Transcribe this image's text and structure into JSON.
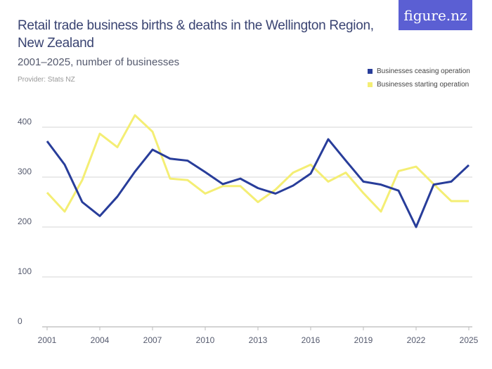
{
  "title": "Retail trade business births & deaths in the Wellington Region, New Zealand",
  "subtitle": "2001–2025, number of businesses",
  "provider": "Provider: Stats NZ",
  "logo": "figure.nz",
  "chart_data": {
    "type": "line",
    "title": "Retail trade business births & deaths in the Wellington Region, New Zealand",
    "subtitle": "2001–2025, number of businesses",
    "x": [
      2001,
      2002,
      2003,
      2004,
      2005,
      2006,
      2007,
      2008,
      2009,
      2010,
      2011,
      2012,
      2013,
      2014,
      2015,
      2016,
      2017,
      2018,
      2019,
      2020,
      2021,
      2022,
      2023,
      2024,
      2025
    ],
    "x_ticks": [
      "2001",
      "2004",
      "2007",
      "2010",
      "2013",
      "2016",
      "2019",
      "2022",
      "2025"
    ],
    "y_ticks": [
      "0",
      "100",
      "200",
      "300",
      "400"
    ],
    "ylim": [
      0,
      400
    ],
    "grid": true,
    "legend_position": "top-right",
    "series": [
      {
        "name": "Businesses ceasing operation",
        "color": "#283d9a",
        "values": [
          372,
          325,
          250,
          222,
          261,
          311,
          355,
          337,
          333,
          310,
          286,
          297,
          278,
          267,
          283,
          307,
          376,
          333,
          291,
          285,
          273,
          200,
          285,
          291,
          324
        ]
      },
      {
        "name": "Businesses starting operation",
        "color": "#f4ee74",
        "values": [
          269,
          231,
          294,
          387,
          360,
          424,
          391,
          297,
          294,
          267,
          282,
          282,
          250,
          275,
          309,
          325,
          291,
          309,
          268,
          231,
          312,
          321,
          286,
          252,
          252
        ]
      }
    ]
  }
}
